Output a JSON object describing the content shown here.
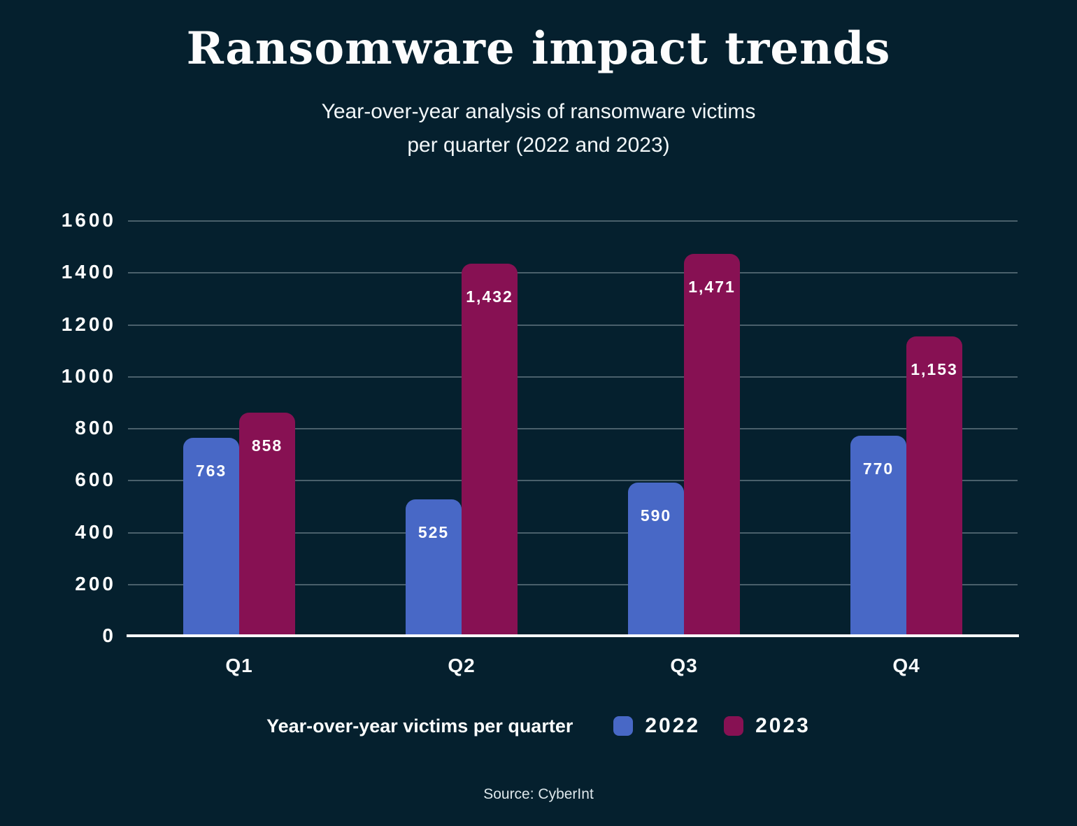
{
  "title": "Ransomware impact trends",
  "subtitle": {
    "lines": [
      "Year-over-year analysis of ransomware victims",
      "per quarter (2022 and 2023)"
    ]
  },
  "legend": {
    "title": "Year-over-year victims per quarter",
    "items": [
      {
        "label": "2022",
        "color": "#4868c6"
      },
      {
        "label": "2023",
        "color": "#871153"
      }
    ]
  },
  "source": "Source: CyberInt",
  "colors": {
    "background": "#05202e",
    "bar_2022": "#4868c6",
    "bar_2023": "#871153",
    "gridline": "rgba(235,245,248,0.30)",
    "baseline": "#ffffff",
    "text": "#ffffff"
  },
  "chart_data": {
    "type": "bar",
    "title": "Ransomware impact trends",
    "subtitle": "Year-over-year analysis of ransomware victims per quarter (2022 and 2023)",
    "categories": [
      "Q1",
      "Q2",
      "Q3",
      "Q4"
    ],
    "series": [
      {
        "name": "2022",
        "color_key": "bar_2022",
        "values": [
          763,
          525,
          590,
          770
        ],
        "labels": [
          "763",
          "525",
          "590",
          "770"
        ]
      },
      {
        "name": "2023",
        "color_key": "bar_2023",
        "values": [
          858,
          1432,
          1471,
          1153
        ],
        "labels": [
          "858",
          "1,432",
          "1,471",
          "1,153"
        ]
      }
    ],
    "xlabel": "",
    "ylabel": "",
    "ylim": [
      0,
      1600
    ],
    "yticks": [
      0,
      200,
      400,
      600,
      800,
      1000,
      1200,
      1400,
      1600
    ],
    "grid": true,
    "legend_position": "bottom",
    "legend_title": "Year-over-year victims per quarter"
  }
}
